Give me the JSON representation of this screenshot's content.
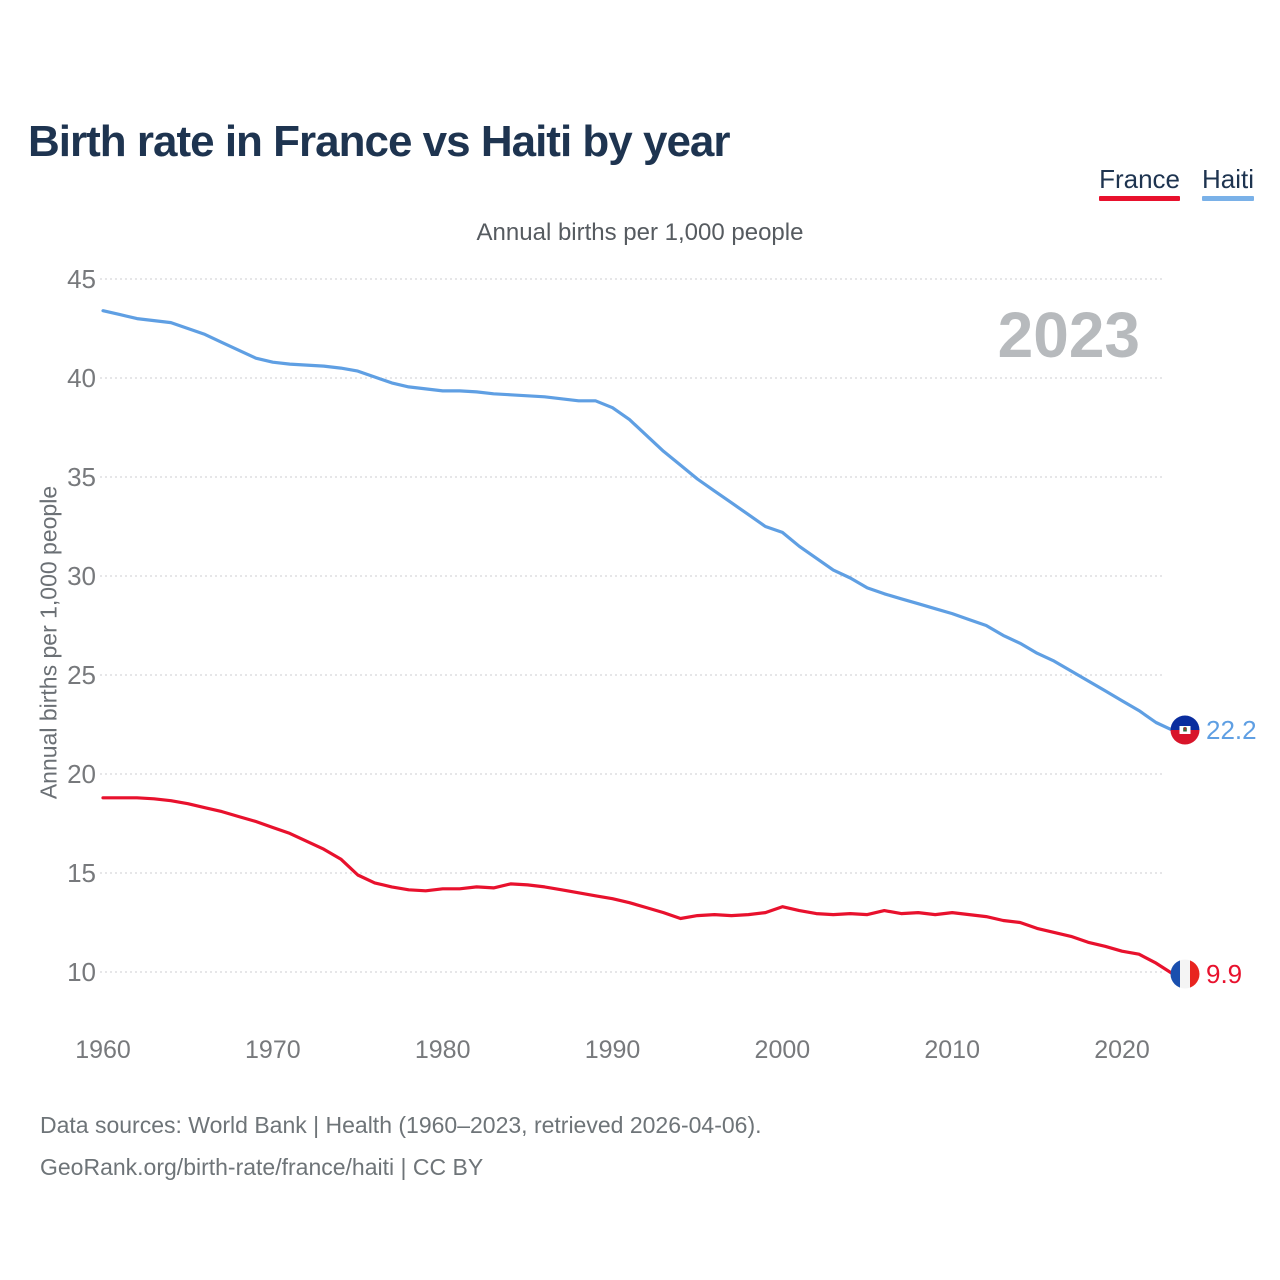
{
  "page": {
    "footer_line1": "Data sources: World Bank | Health (1960–2023, retrieved 2026-04-06).",
    "footer_line2": "GeoRank.org/birth-rate/france/haiti | CC BY"
  },
  "legend": {
    "items": [
      {
        "label": "France",
        "color": "#e8112d"
      },
      {
        "label": "Haiti",
        "color": "#7ab1e8"
      }
    ]
  },
  "chart_data": {
    "type": "line",
    "title": "Birth rate in France vs Haiti by year",
    "subtitle": "Annual births per 1,000 people",
    "ylabel": "Annual births per 1,000 people",
    "watermark": "2023",
    "grid": "horizontal",
    "legend_position": "top-right",
    "x_ticks": [
      1960,
      1970,
      1980,
      1990,
      2000,
      2010,
      2020
    ],
    "y_ticks": [
      10,
      15,
      20,
      25,
      30,
      35,
      40,
      45
    ],
    "ylim": [
      8.5,
      45
    ],
    "x": [
      1960,
      1961,
      1962,
      1963,
      1964,
      1965,
      1966,
      1967,
      1968,
      1969,
      1970,
      1971,
      1972,
      1973,
      1974,
      1975,
      1976,
      1977,
      1978,
      1979,
      1980,
      1981,
      1982,
      1983,
      1984,
      1985,
      1986,
      1987,
      1988,
      1989,
      1990,
      1991,
      1992,
      1993,
      1994,
      1995,
      1996,
      1997,
      1998,
      1999,
      2000,
      2001,
      2002,
      2003,
      2004,
      2005,
      2006,
      2007,
      2008,
      2009,
      2010,
      2011,
      2012,
      2013,
      2014,
      2015,
      2016,
      2017,
      2018,
      2019,
      2020,
      2021,
      2022,
      2023
    ],
    "series": [
      {
        "name": "Haiti",
        "color": "#5f9fe3",
        "end_label": "22.2",
        "values": [
          43.4,
          43.2,
          43.0,
          42.9,
          42.8,
          42.5,
          42.2,
          41.8,
          41.4,
          41.0,
          40.8,
          40.7,
          40.65,
          40.6,
          40.5,
          40.35,
          40.05,
          39.75,
          39.55,
          39.45,
          39.35,
          39.35,
          39.3,
          39.2,
          39.15,
          39.1,
          39.05,
          38.95,
          38.85,
          38.85,
          38.5,
          37.9,
          37.1,
          36.3,
          35.6,
          34.9,
          34.3,
          33.7,
          33.1,
          32.5,
          32.2,
          31.5,
          30.9,
          30.3,
          29.9,
          29.4,
          29.1,
          28.85,
          28.6,
          28.35,
          28.1,
          27.8,
          27.5,
          27.0,
          26.6,
          26.1,
          25.7,
          25.2,
          24.7,
          24.2,
          23.7,
          23.2,
          22.6,
          22.2
        ]
      },
      {
        "name": "France",
        "color": "#e8112d",
        "end_label": "9.9",
        "values": [
          18.8,
          18.8,
          18.8,
          18.75,
          18.65,
          18.5,
          18.3,
          18.1,
          17.85,
          17.6,
          17.3,
          17.0,
          16.6,
          16.2,
          15.7,
          14.9,
          14.5,
          14.3,
          14.15,
          14.1,
          14.2,
          14.2,
          14.3,
          14.25,
          14.45,
          14.4,
          14.3,
          14.15,
          14.0,
          13.85,
          13.7,
          13.5,
          13.25,
          13.0,
          12.7,
          12.85,
          12.9,
          12.85,
          12.9,
          13.0,
          13.3,
          13.1,
          12.95,
          12.9,
          12.95,
          12.9,
          13.1,
          12.95,
          13.0,
          12.9,
          13.0,
          12.9,
          12.8,
          12.6,
          12.5,
          12.2,
          12.0,
          11.8,
          11.5,
          11.3,
          11.05,
          10.9,
          10.45,
          9.9
        ]
      }
    ]
  }
}
